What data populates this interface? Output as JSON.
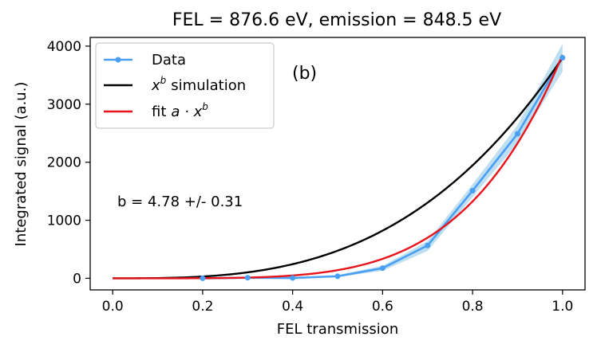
{
  "chart_data": {
    "type": "line",
    "title": "FEL = 876.6 eV, emission = 848.5 eV",
    "xlabel": "FEL transmission",
    "ylabel": "Integrated signal (a.u.)",
    "xlim": [
      -0.05,
      1.05
    ],
    "ylim": [
      -200,
      4150
    ],
    "xticks": [
      0.0,
      0.2,
      0.4,
      0.6,
      0.8,
      1.0
    ],
    "xtick_labels": [
      "0.0",
      "0.2",
      "0.4",
      "0.6",
      "0.8",
      "1.0"
    ],
    "yticks": [
      0,
      1000,
      2000,
      3000,
      4000
    ],
    "ytick_labels": [
      "0",
      "1000",
      "2000",
      "3000",
      "4000"
    ],
    "grid": false,
    "legend_position": "upper-left",
    "panel_label": "(b)",
    "annotation": "b = 4.78 +/- 0.31",
    "series": [
      {
        "name": "Data",
        "legend_label": "Data",
        "style": "line-markers-band",
        "color": "#4a9ff5",
        "band_color": "#a8d4ea",
        "x": [
          0.2,
          0.3,
          0.4,
          0.5,
          0.6,
          0.7,
          0.8,
          0.9,
          1.0
        ],
        "y": [
          0,
          10,
          5,
          35,
          175,
          565,
          1510,
          2490,
          3800
        ],
        "y_lower": [
          -10,
          -5,
          -10,
          20,
          130,
          470,
          1400,
          2330,
          3560
        ],
        "y_upper": [
          10,
          25,
          20,
          55,
          215,
          640,
          1620,
          2640,
          4040
        ]
      },
      {
        "name": "x^b simulation",
        "legend_label": "simulation",
        "legend_math": "x",
        "legend_math_sup": "b",
        "style": "line",
        "color": "#000000",
        "model": "power",
        "a": 3800,
        "b": 3.0
      },
      {
        "name": "fit a·x^b",
        "legend_label": "fit",
        "legend_math": "a · x",
        "legend_math_sup": "b",
        "style": "line",
        "color": "#e8141c",
        "model": "power",
        "a": 3850,
        "b": 4.78
      }
    ]
  }
}
